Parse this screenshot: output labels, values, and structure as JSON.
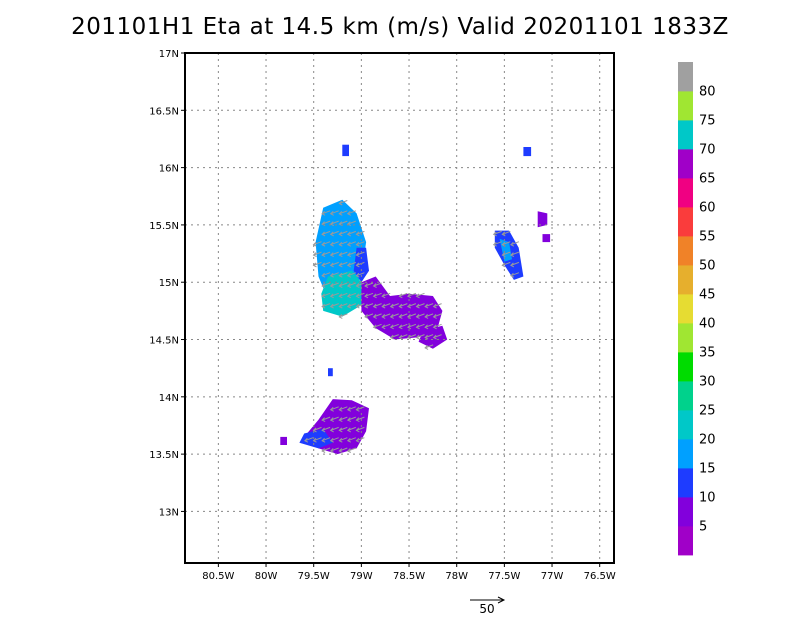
{
  "title": "201101H1 Eta at 14.5 km (m/s) Valid 20201101 1833Z",
  "map": {
    "lon_range": [
      -80.85,
      -76.35
    ],
    "lat_range": [
      12.55,
      17.0
    ],
    "x_ticks": [
      {
        "value": -80.5,
        "label": "80.5W"
      },
      {
        "value": -80.0,
        "label": "80W"
      },
      {
        "value": -79.5,
        "label": "79.5W"
      },
      {
        "value": -79.0,
        "label": "79W"
      },
      {
        "value": -78.5,
        "label": "78.5W"
      },
      {
        "value": -78.0,
        "label": "78W"
      },
      {
        "value": -77.5,
        "label": "77.5W"
      },
      {
        "value": -77.0,
        "label": "77W"
      },
      {
        "value": -76.5,
        "label": "76.5W"
      }
    ],
    "y_ticks": [
      {
        "value": 17.0,
        "label": "17N"
      },
      {
        "value": 16.5,
        "label": "16.5N"
      },
      {
        "value": 16.0,
        "label": "16N"
      },
      {
        "value": 15.5,
        "label": "15.5N"
      },
      {
        "value": 15.0,
        "label": "15N"
      },
      {
        "value": 14.5,
        "label": "14.5N"
      },
      {
        "value": 14.0,
        "label": "14N"
      },
      {
        "value": 13.5,
        "label": "13.5N"
      },
      {
        "value": 13.0,
        "label": "13N"
      }
    ],
    "grid": "dotted"
  },
  "colorbar": {
    "levels": [
      {
        "label": "",
        "color": "#a000c8"
      },
      {
        "label": "5",
        "color": "#8200dc"
      },
      {
        "label": "10",
        "color": "#1e3cff"
      },
      {
        "label": "15",
        "color": "#00a0ff"
      },
      {
        "label": "20",
        "color": "#00c8c8"
      },
      {
        "label": "25",
        "color": "#00d28c"
      },
      {
        "label": "30",
        "color": "#00dc00"
      },
      {
        "label": "35",
        "color": "#a0e632"
      },
      {
        "label": "40",
        "color": "#e6dc32"
      },
      {
        "label": "45",
        "color": "#e6af2d"
      },
      {
        "label": "50",
        "color": "#f08228"
      },
      {
        "label": "55",
        "color": "#fa3c3c"
      },
      {
        "label": "60",
        "color": "#f00082"
      },
      {
        "label": "65",
        "color": "#a000c8"
      },
      {
        "label": "70",
        "color": "#00c8c8"
      },
      {
        "label": "75",
        "color": "#a0e632"
      },
      {
        "label": "80",
        "color": "#a0a0a0"
      }
    ]
  },
  "reference_vector": {
    "label": "50"
  },
  "echo_regions": [
    {
      "name": "main-blob-west",
      "color": "#00a0ff",
      "points": [
        [
          -79.4,
          15.65
        ],
        [
          -79.2,
          15.72
        ],
        [
          -79.05,
          15.6
        ],
        [
          -78.95,
          15.35
        ],
        [
          -79.0,
          15.05
        ],
        [
          -79.15,
          14.85
        ],
        [
          -79.35,
          14.85
        ],
        [
          -79.45,
          15.05
        ],
        [
          -79.48,
          15.35
        ]
      ]
    },
    {
      "name": "main-blob-teal",
      "color": "#00c8c8",
      "points": [
        [
          -79.35,
          15.05
        ],
        [
          -79.1,
          15.1
        ],
        [
          -78.95,
          14.95
        ],
        [
          -79.0,
          14.8
        ],
        [
          -79.2,
          14.7
        ],
        [
          -79.4,
          14.75
        ],
        [
          -79.42,
          14.9
        ]
      ]
    },
    {
      "name": "main-blob-blue-edge",
      "color": "#1e3cff",
      "points": [
        [
          -79.05,
          15.3
        ],
        [
          -78.95,
          15.3
        ],
        [
          -78.92,
          15.1
        ],
        [
          -79.0,
          15.0
        ],
        [
          -79.08,
          15.1
        ]
      ]
    },
    {
      "name": "main-blob-east",
      "color": "#8200dc",
      "points": [
        [
          -79.0,
          15.0
        ],
        [
          -78.85,
          15.05
        ],
        [
          -78.7,
          14.88
        ],
        [
          -78.5,
          14.9
        ],
        [
          -78.25,
          14.88
        ],
        [
          -78.15,
          14.75
        ],
        [
          -78.2,
          14.6
        ],
        [
          -78.4,
          14.52
        ],
        [
          -78.65,
          14.5
        ],
        [
          -78.85,
          14.6
        ],
        [
          -79.0,
          14.75
        ]
      ]
    },
    {
      "name": "main-blob-southeast-lobe",
      "color": "#8200dc",
      "points": [
        [
          -78.35,
          14.58
        ],
        [
          -78.15,
          14.62
        ],
        [
          -78.1,
          14.5
        ],
        [
          -78.25,
          14.42
        ],
        [
          -78.4,
          14.48
        ]
      ]
    },
    {
      "name": "south-blob",
      "color": "#8200dc",
      "points": [
        [
          -79.3,
          13.98
        ],
        [
          -79.1,
          13.97
        ],
        [
          -78.92,
          13.9
        ],
        [
          -78.95,
          13.7
        ],
        [
          -79.05,
          13.55
        ],
        [
          -79.25,
          13.5
        ],
        [
          -79.45,
          13.55
        ],
        [
          -79.6,
          13.65
        ],
        [
          -79.45,
          13.8
        ]
      ]
    },
    {
      "name": "south-blob-blue",
      "color": "#1e3cff",
      "points": [
        [
          -79.6,
          13.68
        ],
        [
          -79.4,
          13.72
        ],
        [
          -79.3,
          13.6
        ],
        [
          -79.45,
          13.55
        ],
        [
          -79.65,
          13.6
        ]
      ]
    },
    {
      "name": "east-cell",
      "color": "#1e3cff",
      "points": [
        [
          -77.6,
          15.45
        ],
        [
          -77.45,
          15.45
        ],
        [
          -77.35,
          15.3
        ],
        [
          -77.3,
          15.05
        ],
        [
          -77.4,
          15.02
        ],
        [
          -77.5,
          15.15
        ],
        [
          -77.6,
          15.3
        ]
      ]
    },
    {
      "name": "east-cell-core",
      "color": "#00a0ff",
      "points": [
        [
          -77.55,
          15.38
        ],
        [
          -77.45,
          15.35
        ],
        [
          -77.42,
          15.2
        ],
        [
          -77.5,
          15.18
        ]
      ]
    },
    {
      "name": "far-east-cell",
      "color": "#8200dc",
      "points": [
        [
          -77.15,
          15.62
        ],
        [
          -77.05,
          15.6
        ],
        [
          -77.05,
          15.5
        ],
        [
          -77.15,
          15.48
        ]
      ]
    },
    {
      "name": "far-east-cell-2",
      "color": "#8200dc",
      "points": [
        [
          -77.1,
          15.42
        ],
        [
          -77.02,
          15.42
        ],
        [
          -77.02,
          15.35
        ],
        [
          -77.1,
          15.35
        ]
      ]
    },
    {
      "name": "north-speck",
      "color": "#1e3cff",
      "points": [
        [
          -79.2,
          16.2
        ],
        [
          -79.13,
          16.2
        ],
        [
          -79.13,
          16.1
        ],
        [
          -79.2,
          16.1
        ]
      ]
    },
    {
      "name": "ne-speck",
      "color": "#1e3cff",
      "points": [
        [
          -77.3,
          16.18
        ],
        [
          -77.22,
          16.18
        ],
        [
          -77.22,
          16.1
        ],
        [
          -77.3,
          16.1
        ]
      ]
    },
    {
      "name": "mid-speck",
      "color": "#1e3cff",
      "points": [
        [
          -79.35,
          14.25
        ],
        [
          -79.3,
          14.25
        ],
        [
          -79.3,
          14.18
        ],
        [
          -79.35,
          14.18
        ]
      ]
    },
    {
      "name": "west-speck",
      "color": "#8200dc",
      "points": [
        [
          -79.85,
          13.65
        ],
        [
          -79.78,
          13.65
        ],
        [
          -79.78,
          13.58
        ],
        [
          -79.85,
          13.58
        ]
      ]
    }
  ]
}
